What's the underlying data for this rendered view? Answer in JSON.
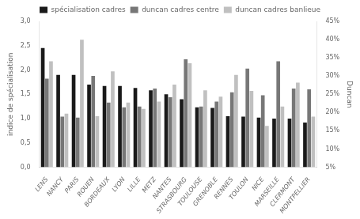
{
  "chart_data": {
    "type": "bar",
    "categories": [
      "LENS",
      "NANCY",
      "PARIS",
      "ROUEN",
      "BORDEAUX",
      "LYON",
      "LILLE",
      "METZ",
      "NANTES",
      "STRASBOURG",
      "TOULOUSE",
      "GRENOBLE",
      "RENNES",
      "TOULON",
      "NICE",
      "MARSEILLE",
      "CLERMONT",
      "MONTPELLIER"
    ],
    "series": [
      {
        "name": "spécialisation cadres",
        "color": "#1a1a1a",
        "values": [
          2.45,
          1.9,
          1.9,
          1.7,
          1.67,
          1.67,
          1.63,
          1.58,
          1.5,
          1.4,
          1.23,
          1.22,
          1.05,
          1.04,
          1.02,
          1.0,
          1.0,
          0.92
        ]
      },
      {
        "name": "duncan cadres centre",
        "color": "#777777",
        "values": [
          1.82,
          1.04,
          1.02,
          1.88,
          1.33,
          1.23,
          1.25,
          1.62,
          1.44,
          2.22,
          1.25,
          1.35,
          1.54,
          2.03,
          1.48,
          2.18,
          1.62,
          1.6
        ]
      },
      {
        "name": "duncan cadres banlieue",
        "color": "#c0c0c0",
        "values": [
          2.18,
          1.1,
          2.62,
          1.05,
          1.97,
          1.33,
          1.2,
          1.35,
          1.7,
          2.14,
          1.58,
          1.45,
          1.9,
          1.57,
          0.85,
          1.25,
          1.74,
          1.04
        ]
      }
    ],
    "ylim": [
      0.0,
      3.0
    ],
    "yticks": [
      {
        "value": 0.0,
        "label": "0,0"
      },
      {
        "value": 0.5,
        "label": "0,5"
      },
      {
        "value": 1.0,
        "label": "1,0"
      },
      {
        "value": 1.5,
        "label": "1,5"
      },
      {
        "value": 2.0,
        "label": "2,0"
      },
      {
        "value": 2.5,
        "label": "2,5"
      },
      {
        "value": 3.0,
        "label": "3,0"
      }
    ],
    "y2lim": [
      0.05,
      0.45
    ],
    "y2ticks": [
      {
        "value": 0.05,
        "label": "5%"
      },
      {
        "value": 0.1,
        "label": "10%"
      },
      {
        "value": 0.15,
        "label": "15%"
      },
      {
        "value": 0.2,
        "label": "20%"
      },
      {
        "value": 0.25,
        "label": "25%"
      },
      {
        "value": 0.3,
        "label": "30%"
      },
      {
        "value": 0.35,
        "label": "35%"
      },
      {
        "value": 0.4,
        "label": "40%"
      },
      {
        "value": 0.45,
        "label": "45%"
      }
    ],
    "ylabel": "indice de spécialisation",
    "y2label": "Duncan",
    "legend": "top",
    "grid": false
  }
}
